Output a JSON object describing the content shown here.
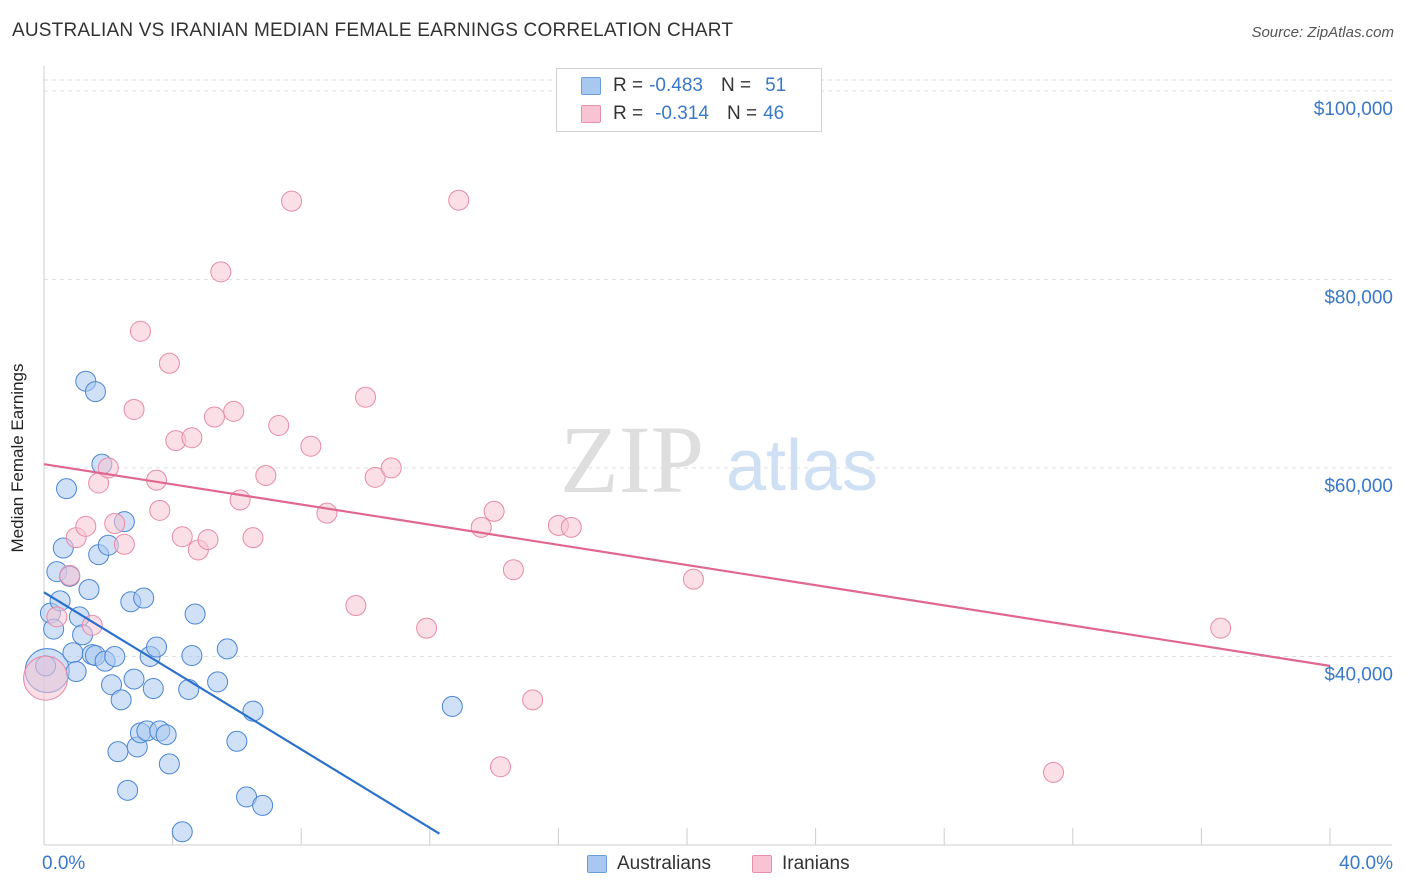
{
  "title": "AUSTRALIAN VS IRANIAN MEDIAN FEMALE EARNINGS CORRELATION CHART",
  "source": "Source: ZipAtlas.com",
  "watermark": {
    "zip": "ZIP",
    "atlas": "atlas"
  },
  "legend": {
    "rows": [
      {
        "r_label": "R =",
        "r_value": "-0.483",
        "n_label": "N =",
        "n_value": "51",
        "color": "#a9c8f0",
        "border": "#6a9fdc"
      },
      {
        "r_label": "R =",
        "r_value": "-0.314",
        "n_label": "N =",
        "n_value": "46",
        "color": "#f8c4d3",
        "border": "#e890ab"
      }
    ]
  },
  "bottom_legend": [
    {
      "label": "Australians",
      "color": "#a9c8f0",
      "border": "#6a9fdc"
    },
    {
      "label": "Iranians",
      "color": "#f8c4d3",
      "border": "#e890ab"
    }
  ],
  "chart_data": {
    "type": "scatter",
    "title": "AUSTRALIAN VS IRANIAN MEDIAN FEMALE EARNINGS CORRELATION CHART",
    "xlabel": "",
    "ylabel": "Median Female Earnings",
    "xlim": [
      0,
      40
    ],
    "ylim": [
      20000,
      102000
    ],
    "x_tick_labels": [
      "0.0%",
      "40.0%"
    ],
    "y_ticks": [
      40000,
      60000,
      80000,
      100000
    ],
    "y_tick_labels": [
      "$40,000",
      "$60,000",
      "$80,000",
      "$100,000"
    ],
    "grid": true,
    "series": [
      {
        "name": "Australians",
        "color": "#4a86d4",
        "fill": "rgba(169,200,240,0.55)",
        "line_color": "#2a70cc",
        "trend": {
          "x": [
            0.0,
            12.3
          ],
          "y": [
            46800,
            21200
          ]
        },
        "points": [
          [
            0.1,
            38500
          ],
          [
            0.2,
            44600
          ],
          [
            0.3,
            42900
          ],
          [
            0.4,
            49000
          ],
          [
            0.5,
            45900
          ],
          [
            0.6,
            51500
          ],
          [
            0.7,
            57800
          ],
          [
            0.8,
            48500
          ],
          [
            0.9,
            40400
          ],
          [
            1.0,
            38400
          ],
          [
            1.1,
            44200
          ],
          [
            1.2,
            42300
          ],
          [
            1.3,
            69200
          ],
          [
            1.4,
            47100
          ],
          [
            1.5,
            40200
          ],
          [
            1.6,
            40100
          ],
          [
            1.6,
            68100
          ],
          [
            1.7,
            50800
          ],
          [
            1.8,
            60400
          ],
          [
            1.9,
            39500
          ],
          [
            2.0,
            51800
          ],
          [
            2.1,
            37000
          ],
          [
            2.2,
            40000
          ],
          [
            2.3,
            29900
          ],
          [
            2.4,
            35400
          ],
          [
            2.5,
            54300
          ],
          [
            2.6,
            25800
          ],
          [
            2.7,
            45800
          ],
          [
            2.8,
            37600
          ],
          [
            2.9,
            30400
          ],
          [
            3.0,
            31900
          ],
          [
            3.1,
            46200
          ],
          [
            3.2,
            32100
          ],
          [
            3.3,
            40000
          ],
          [
            3.4,
            36600
          ],
          [
            3.5,
            41000
          ],
          [
            3.6,
            32100
          ],
          [
            3.8,
            31700
          ],
          [
            3.9,
            28600
          ],
          [
            4.3,
            21400
          ],
          [
            4.5,
            36500
          ],
          [
            4.6,
            40100
          ],
          [
            4.7,
            44500
          ],
          [
            5.4,
            37300
          ],
          [
            5.7,
            40800
          ],
          [
            6.0,
            31000
          ],
          [
            6.3,
            25100
          ],
          [
            6.5,
            34200
          ],
          [
            6.8,
            24200
          ],
          [
            12.7,
            34700
          ],
          [
            0.05,
            39000
          ]
        ],
        "point_sizes": [
          22,
          10,
          10,
          10,
          10,
          10,
          10,
          10,
          10,
          10,
          10,
          10,
          10,
          10,
          10,
          10,
          10,
          10,
          10,
          10,
          10,
          10,
          10,
          10,
          10,
          10,
          10,
          10,
          10,
          10,
          10,
          10,
          10,
          10,
          10,
          10,
          10,
          10,
          10,
          10,
          10,
          10,
          10,
          10,
          10,
          10,
          10,
          10,
          10,
          10,
          10
        ]
      },
      {
        "name": "Iranians",
        "color": "#e88aa8",
        "fill": "rgba(248,196,211,0.55)",
        "line_color": "#e06890",
        "trend": {
          "x": [
            0.0,
            40.0
          ],
          "y": [
            60400,
            39000
          ]
        },
        "points": [
          [
            0.05,
            37700
          ],
          [
            0.4,
            44200
          ],
          [
            0.8,
            48600
          ],
          [
            1.0,
            52600
          ],
          [
            1.3,
            53800
          ],
          [
            1.5,
            43300
          ],
          [
            1.7,
            58400
          ],
          [
            2.0,
            60000
          ],
          [
            2.2,
            54100
          ],
          [
            2.5,
            51900
          ],
          [
            2.8,
            66200
          ],
          [
            3.0,
            74500
          ],
          [
            3.5,
            58700
          ],
          [
            3.6,
            55500
          ],
          [
            3.9,
            71100
          ],
          [
            4.1,
            62900
          ],
          [
            4.3,
            52700
          ],
          [
            4.6,
            63200
          ],
          [
            4.8,
            51300
          ],
          [
            5.1,
            52400
          ],
          [
            5.3,
            65400
          ],
          [
            5.5,
            80800
          ],
          [
            5.9,
            66000
          ],
          [
            6.1,
            56600
          ],
          [
            6.5,
            52600
          ],
          [
            6.9,
            59200
          ],
          [
            7.3,
            64500
          ],
          [
            7.7,
            88300
          ],
          [
            8.3,
            62300
          ],
          [
            8.8,
            55200
          ],
          [
            9.7,
            45400
          ],
          [
            10.0,
            67500
          ],
          [
            10.3,
            59000
          ],
          [
            10.8,
            60000
          ],
          [
            11.9,
            43000
          ],
          [
            12.9,
            88400
          ],
          [
            13.6,
            53700
          ],
          [
            14.0,
            55400
          ],
          [
            14.2,
            28300
          ],
          [
            14.6,
            49200
          ],
          [
            15.2,
            35400
          ],
          [
            16.0,
            53900
          ],
          [
            16.4,
            53700
          ],
          [
            20.2,
            48200
          ],
          [
            31.4,
            27700
          ],
          [
            36.6,
            43000
          ]
        ],
        "point_sizes": [
          22,
          10,
          10,
          10,
          10,
          10,
          10,
          10,
          10,
          10,
          10,
          10,
          10,
          10,
          10,
          10,
          10,
          10,
          10,
          10,
          10,
          10,
          10,
          10,
          10,
          10,
          10,
          10,
          10,
          10,
          10,
          10,
          10,
          10,
          10,
          10,
          10,
          10,
          10,
          10,
          10,
          10,
          10,
          10,
          10,
          10
        ]
      }
    ]
  }
}
